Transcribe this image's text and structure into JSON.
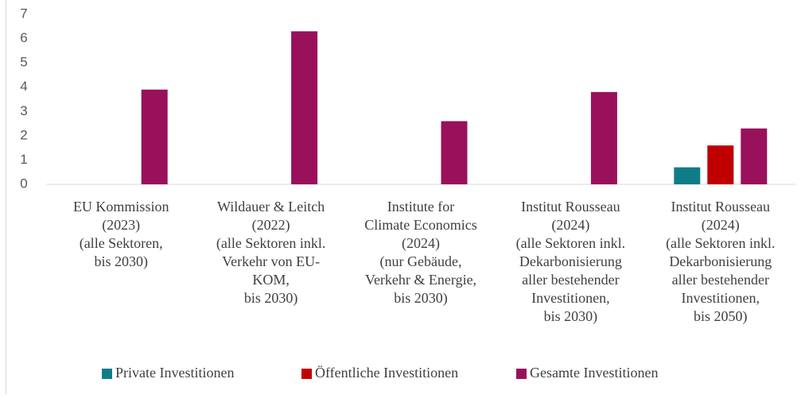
{
  "chart_data": {
    "type": "bar",
    "categories": [
      [
        "EU Kommission",
        "(2023)",
        "(alle Sektoren,",
        "bis 2030)"
      ],
      [
        "Wildauer & Leitch",
        "(2022)",
        "(alle Sektoren inkl.",
        "Verkehr von EU-",
        "KOM,",
        "bis 2030)"
      ],
      [
        "Institute for",
        "Climate Economics",
        "(2024)",
        "(nur Gebäude,",
        "Verkehr & Energie,",
        "bis 2030)"
      ],
      [
        "Institut Rousseau",
        "(2024)",
        "(alle Sektoren inkl.",
        "Dekarbonisierung",
        "aller bestehender",
        "Investitionen,",
        "bis 2030)"
      ],
      [
        "Institut Rousseau",
        "(2024)",
        "(alle Sektoren inkl.",
        "Dekarbonisierung",
        "aller bestehender",
        "Investitionen,",
        "bis 2050)"
      ]
    ],
    "series": [
      {
        "name": "Private Investitionen",
        "color": "#0f7d87",
        "values": [
          null,
          null,
          null,
          null,
          0.7
        ]
      },
      {
        "name": "Öffentliche Investitionen",
        "color": "#c00000",
        "values": [
          null,
          null,
          null,
          null,
          1.6
        ]
      },
      {
        "name": "Gesamte Investitionen",
        "color": "#99115a",
        "values": [
          3.9,
          6.3,
          2.6,
          3.8,
          2.3
        ]
      }
    ],
    "ylim": [
      0,
      7
    ],
    "yticks": [
      0,
      1,
      2,
      3,
      4,
      5,
      6,
      7
    ],
    "legend": "bottom"
  }
}
